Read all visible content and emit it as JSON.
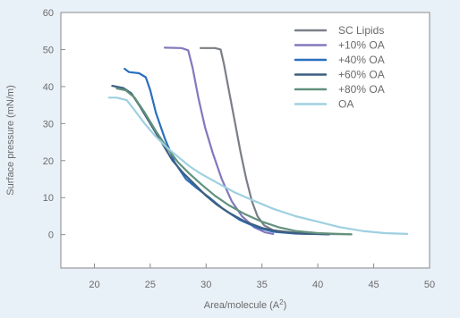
{
  "chart_data": {
    "type": "line",
    "title": "",
    "xlabel_text": "Area/molecule (A",
    "xlabel_sup": "2",
    "xlabel_close": ")",
    "ylabel": "Surface pressure (mN/m)",
    "xlim": [
      17,
      50
    ],
    "ylim": [
      -9,
      60
    ],
    "xticks": [
      20,
      25,
      30,
      35,
      40,
      45,
      50
    ],
    "yticks": [
      0,
      10,
      20,
      30,
      40,
      50,
      60
    ],
    "grid": false,
    "legend_position": "top-right",
    "series": [
      {
        "name": "SC Lipids",
        "color": "#7a7f86",
        "points": [
          [
            29.5,
            50.4
          ],
          [
            30.8,
            50.4
          ],
          [
            31.3,
            50.0
          ],
          [
            31.6,
            46.0
          ],
          [
            32.1,
            38.0
          ],
          [
            32.6,
            30.0
          ],
          [
            33.1,
            22.0
          ],
          [
            33.6,
            15.0
          ],
          [
            34.1,
            9.0
          ],
          [
            34.6,
            5.0
          ],
          [
            35.2,
            2.5
          ],
          [
            36.0,
            1.2
          ],
          [
            38.0,
            0.5
          ],
          [
            40.0,
            0.2
          ],
          [
            43.0,
            0.1
          ]
        ]
      },
      {
        "name": "+10% OA",
        "color": "#8378bd",
        "points": [
          [
            26.3,
            50.5
          ],
          [
            27.8,
            50.4
          ],
          [
            28.4,
            49.8
          ],
          [
            28.8,
            45.0
          ],
          [
            29.3,
            37.0
          ],
          [
            29.9,
            29.0
          ],
          [
            30.6,
            22.0
          ],
          [
            31.4,
            15.0
          ],
          [
            32.3,
            9.0
          ],
          [
            33.2,
            5.0
          ],
          [
            34.3,
            2.0
          ],
          [
            35.3,
            0.6
          ],
          [
            36.0,
            0.2
          ]
        ]
      },
      {
        "name": "+40% OA",
        "color": "#2a6fc0",
        "points": [
          [
            22.7,
            44.8
          ],
          [
            23.1,
            43.9
          ],
          [
            24.0,
            43.6
          ],
          [
            24.6,
            42.5
          ],
          [
            25.0,
            39.0
          ],
          [
            25.5,
            33.0
          ],
          [
            26.3,
            26.0
          ],
          [
            27.2,
            19.5
          ],
          [
            28.2,
            15.0
          ],
          [
            29.2,
            12.5
          ],
          [
            30.3,
            10.0
          ],
          [
            31.5,
            7.0
          ],
          [
            33.0,
            4.0
          ],
          [
            34.5,
            2.0
          ],
          [
            36.0,
            0.8
          ],
          [
            38.0,
            0.3
          ],
          [
            41.0,
            0.1
          ]
        ]
      },
      {
        "name": "+60% OA",
        "color": "#3d5f80",
        "points": [
          [
            21.6,
            40.2
          ],
          [
            22.6,
            39.6
          ],
          [
            23.3,
            38.2
          ],
          [
            24.0,
            35.0
          ],
          [
            25.0,
            30.0
          ],
          [
            26.0,
            25.0
          ],
          [
            27.0,
            20.0
          ],
          [
            28.0,
            16.5
          ],
          [
            29.0,
            13.5
          ],
          [
            30.0,
            10.5
          ],
          [
            31.0,
            8.0
          ],
          [
            32.0,
            6.0
          ],
          [
            33.5,
            3.5
          ],
          [
            35.0,
            1.8
          ],
          [
            36.5,
            0.8
          ],
          [
            38.5,
            0.3
          ],
          [
            41.0,
            0.1
          ]
        ]
      },
      {
        "name": "+80% OA",
        "color": "#62917c",
        "points": [
          [
            22.0,
            39.5
          ],
          [
            22.8,
            39.0
          ],
          [
            23.6,
            37.0
          ],
          [
            24.5,
            33.0
          ],
          [
            25.5,
            28.0
          ],
          [
            26.5,
            23.5
          ],
          [
            27.5,
            19.5
          ],
          [
            28.5,
            16.5
          ],
          [
            29.6,
            13.5
          ],
          [
            30.8,
            10.5
          ],
          [
            32.0,
            8.0
          ],
          [
            33.5,
            5.5
          ],
          [
            35.0,
            3.5
          ],
          [
            36.5,
            2.0
          ],
          [
            38.0,
            1.0
          ],
          [
            40.0,
            0.4
          ],
          [
            43.0,
            0.1
          ]
        ]
      },
      {
        "name": "OA",
        "color": "#9ed0e0",
        "points": [
          [
            21.3,
            37.0
          ],
          [
            22.0,
            37.0
          ],
          [
            22.9,
            36.3
          ],
          [
            23.5,
            34.0
          ],
          [
            24.5,
            30.0
          ],
          [
            25.5,
            26.5
          ],
          [
            26.5,
            23.5
          ],
          [
            27.5,
            21.0
          ],
          [
            28.5,
            18.5
          ],
          [
            29.5,
            16.5
          ],
          [
            31.0,
            14.0
          ],
          [
            32.5,
            11.5
          ],
          [
            34.0,
            9.5
          ],
          [
            36.0,
            7.0
          ],
          [
            38.0,
            5.0
          ],
          [
            40.0,
            3.5
          ],
          [
            42.0,
            2.0
          ],
          [
            44.0,
            1.0
          ],
          [
            46.0,
            0.4
          ],
          [
            48.0,
            0.2
          ]
        ]
      }
    ]
  }
}
